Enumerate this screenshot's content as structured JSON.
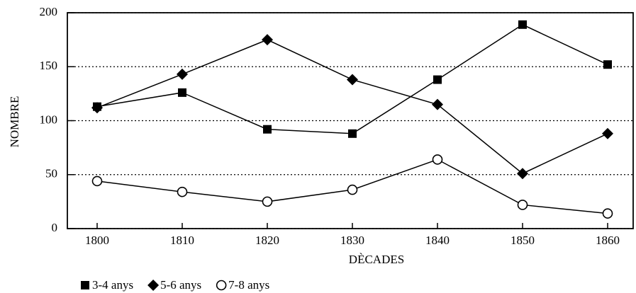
{
  "chart_data": {
    "type": "line",
    "x": [
      1800,
      1810,
      1820,
      1830,
      1840,
      1850,
      1860
    ],
    "xlim": [
      1796.5,
      1863
    ],
    "xticks": [
      1800,
      1810,
      1820,
      1830,
      1840,
      1850,
      1860
    ],
    "ylim": [
      0,
      200
    ],
    "yticks": [
      0,
      50,
      100,
      150,
      200
    ],
    "xlabel": "DÈCADES",
    "ylabel": "NOMBRE",
    "grid": true,
    "series": [
      {
        "name": "3-4 anys",
        "color": "#000000",
        "marker": "square",
        "values": [
          113,
          126,
          92,
          88,
          138,
          189,
          152
        ]
      },
      {
        "name": "5-6 anys",
        "color": "#000000",
        "marker": "diamond",
        "values": [
          112,
          143,
          175,
          138,
          115,
          51,
          88
        ]
      },
      {
        "name": "7-8 anys",
        "color": "#000000",
        "marker": "circle",
        "values": [
          44,
          34,
          25,
          36,
          64,
          22,
          14
        ]
      }
    ]
  }
}
